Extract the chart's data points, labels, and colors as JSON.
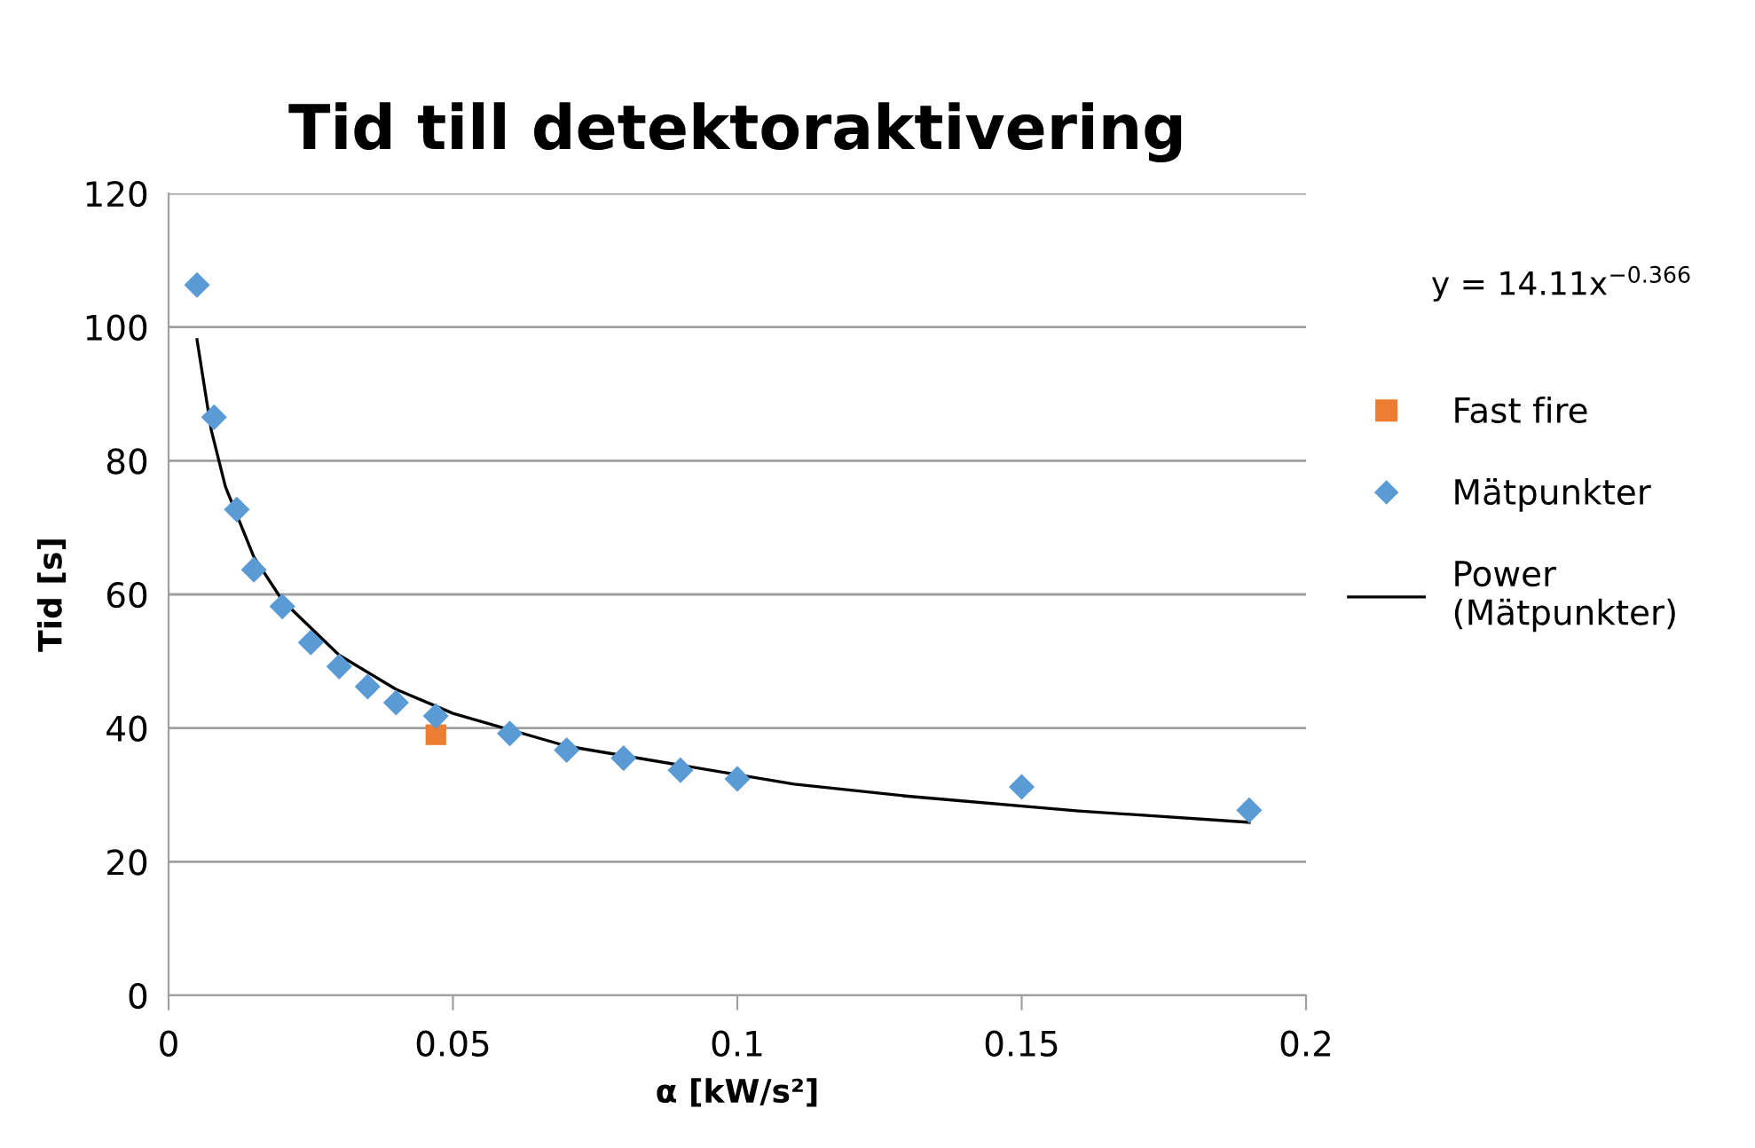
{
  "chart_data": {
    "type": "scatter",
    "title": "Tid till detektoraktivering",
    "xlabel": "α [kW/s²]",
    "ylabel": "Tid [s]",
    "xlim": [
      0,
      0.2
    ],
    "xticks": [
      0,
      0.05,
      0.1,
      0.15,
      0.2
    ],
    "ylim": [
      0,
      120
    ],
    "yticks": [
      0,
      20,
      40,
      60,
      80,
      100,
      120
    ],
    "grid": "y",
    "legend": "right",
    "annotations": [
      "y = 14.11x$^{−0.366}$"
    ],
    "series": [
      {
        "name": "Fast fire",
        "marker": "square",
        "color": "#ed7d31",
        "x": [
          0.047
        ],
        "values": [
          39.0
        ]
      },
      {
        "name": "Mätpunkter",
        "marker": "diamond",
        "color": "#5b9bd5",
        "x": [
          0.005,
          0.008,
          0.012,
          0.015,
          0.02,
          0.025,
          0.03,
          0.035,
          0.04,
          0.047,
          0.06,
          0.07,
          0.08,
          0.09,
          0.1,
          0.15,
          0.19
        ],
        "values": [
          106.3,
          86.5,
          72.7,
          63.7,
          58.2,
          52.8,
          49.2,
          46.2,
          43.8,
          41.8,
          39.2,
          36.7,
          35.5,
          33.7,
          32.4,
          31.2,
          27.7
        ]
      },
      {
        "name": "Power (Mätpunkter)",
        "type": "line",
        "marker": "none",
        "color": "#000000",
        "x": [
          0.005,
          0.0075,
          0.01,
          0.015,
          0.02,
          0.03,
          0.04,
          0.05,
          0.07,
          0.11,
          0.13,
          0.16,
          0.19
        ],
        "values": [
          98.1,
          84.6,
          76.1,
          65.6,
          59.1,
          50.9,
          45.8,
          42.2,
          37.3,
          31.6,
          29.8,
          27.6,
          25.9
        ]
      }
    ]
  }
}
